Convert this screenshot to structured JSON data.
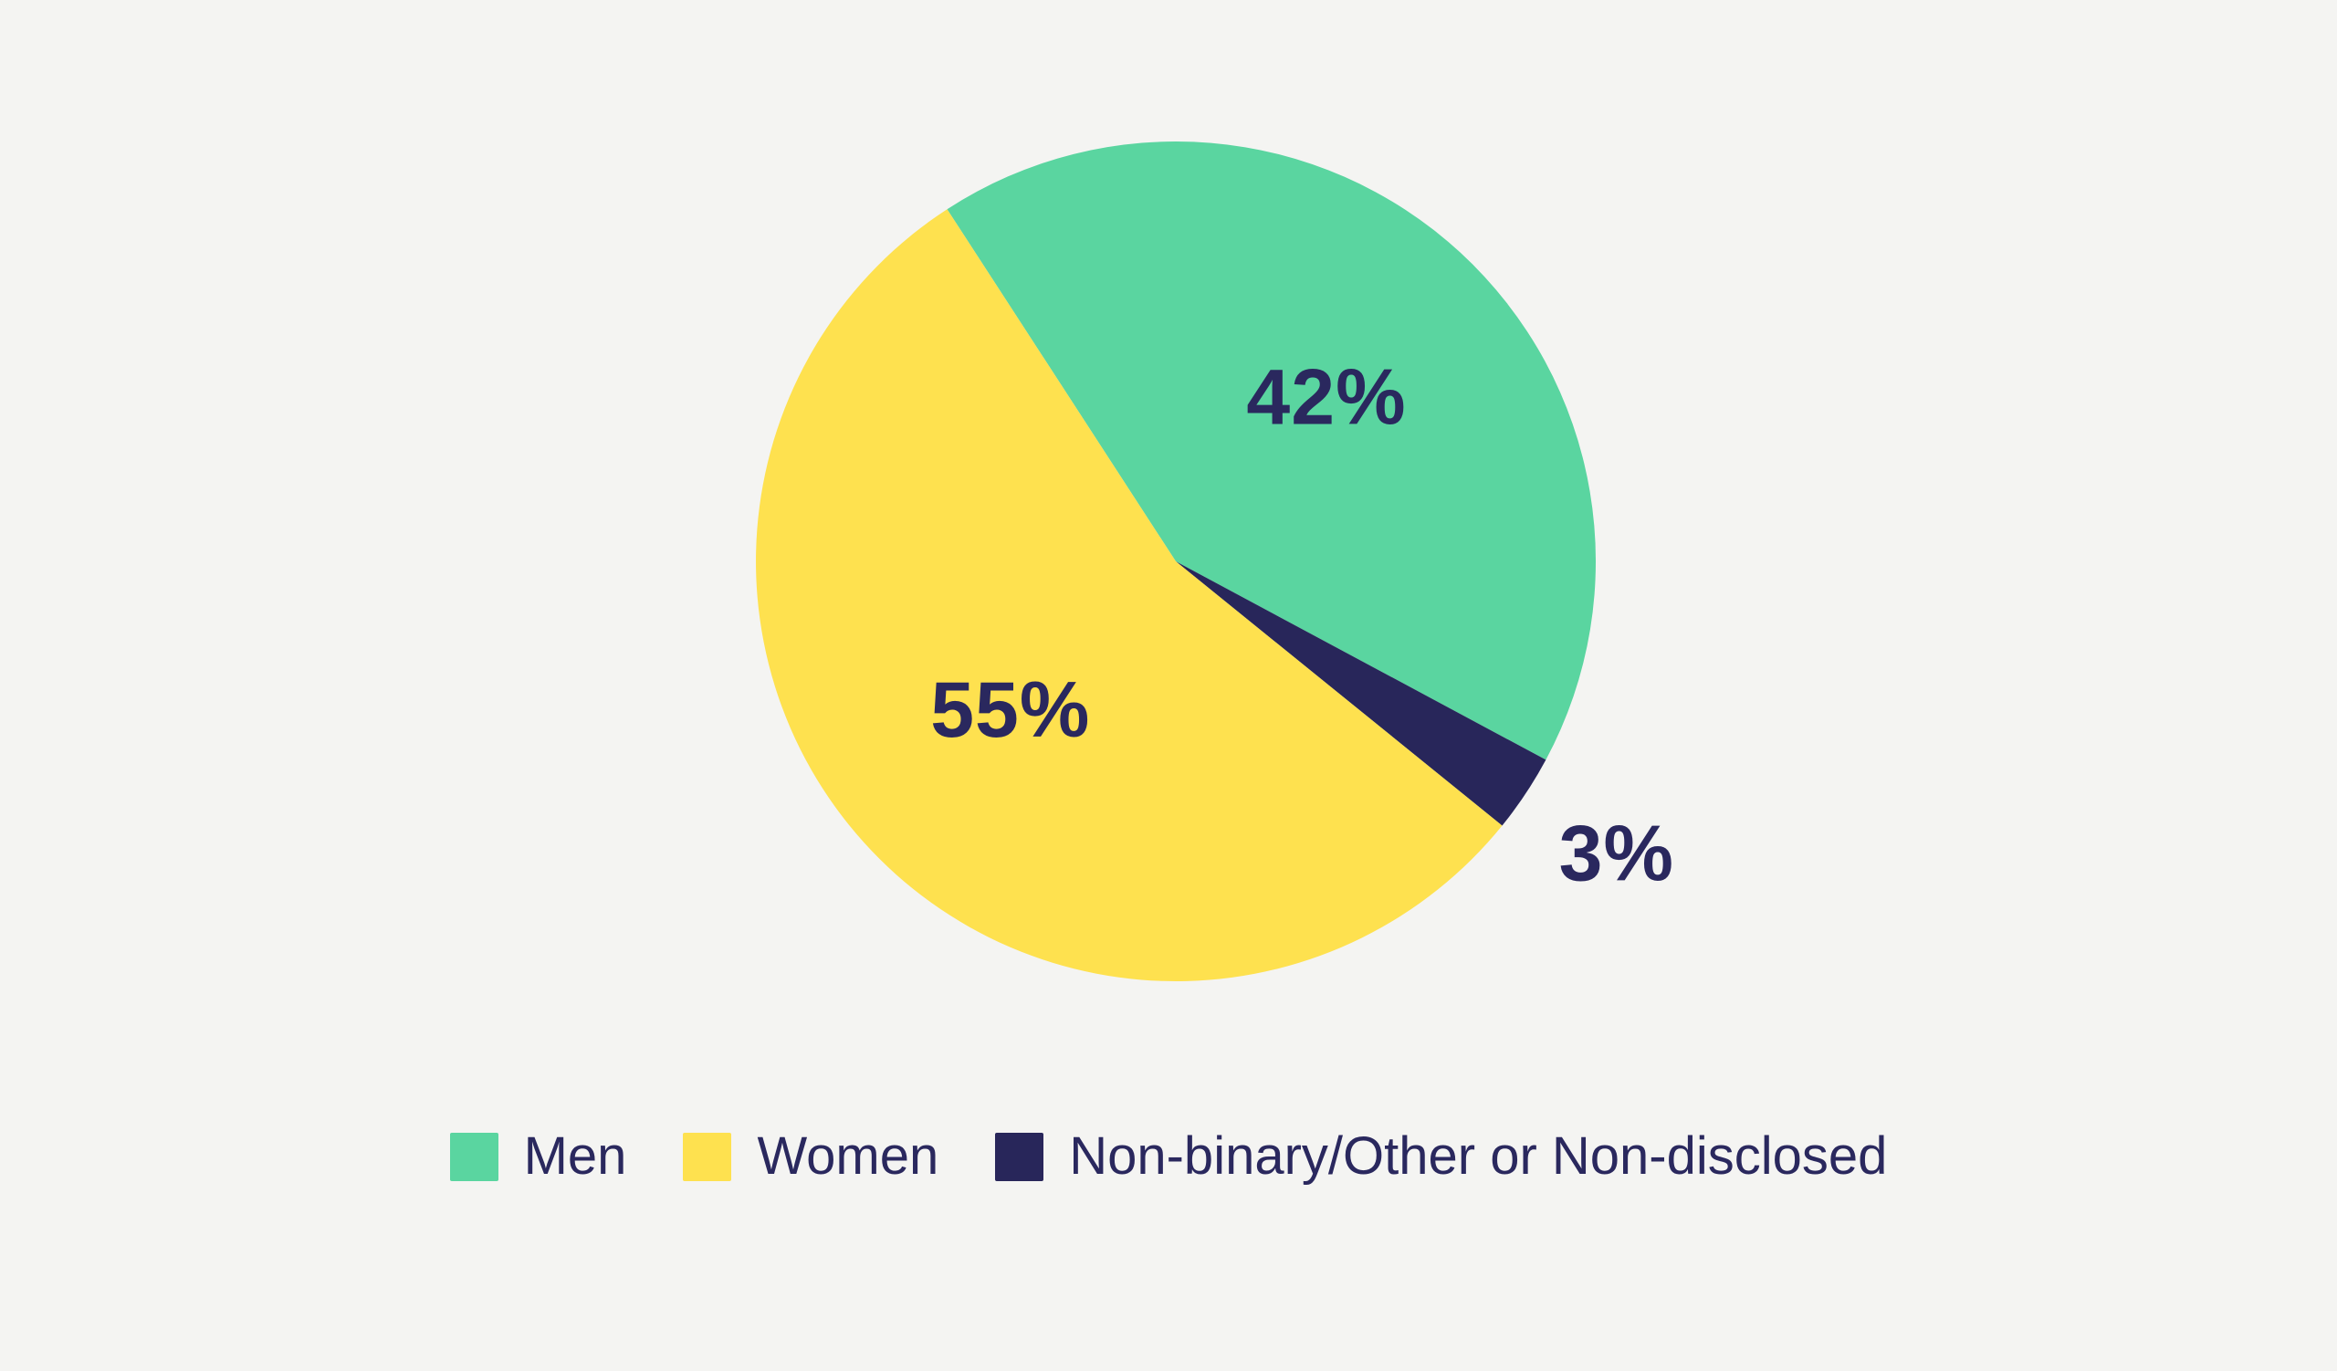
{
  "background_color": "#f4f4f2",
  "text_color": "#2a285e",
  "chart_data": {
    "type": "pie",
    "title": "",
    "series": [
      {
        "label": "Men",
        "value": 42,
        "color": "#5ad5a0",
        "data_label": "42%",
        "label_placement": "inside"
      },
      {
        "label": "Women",
        "value": 55,
        "color": "#fee14f",
        "data_label": "55%",
        "label_placement": "inside"
      },
      {
        "label": "Non-binary/Other or Non-disclosed",
        "value": 3,
        "color": "#28265a",
        "data_label": "3%",
        "label_placement": "outside"
      }
    ],
    "draw_order": [
      0,
      2,
      1
    ],
    "start_angle_deg": -33,
    "direction": "clockwise",
    "data_label_color": "#2a285e",
    "legend_position": "bottom-center",
    "grid": false
  }
}
